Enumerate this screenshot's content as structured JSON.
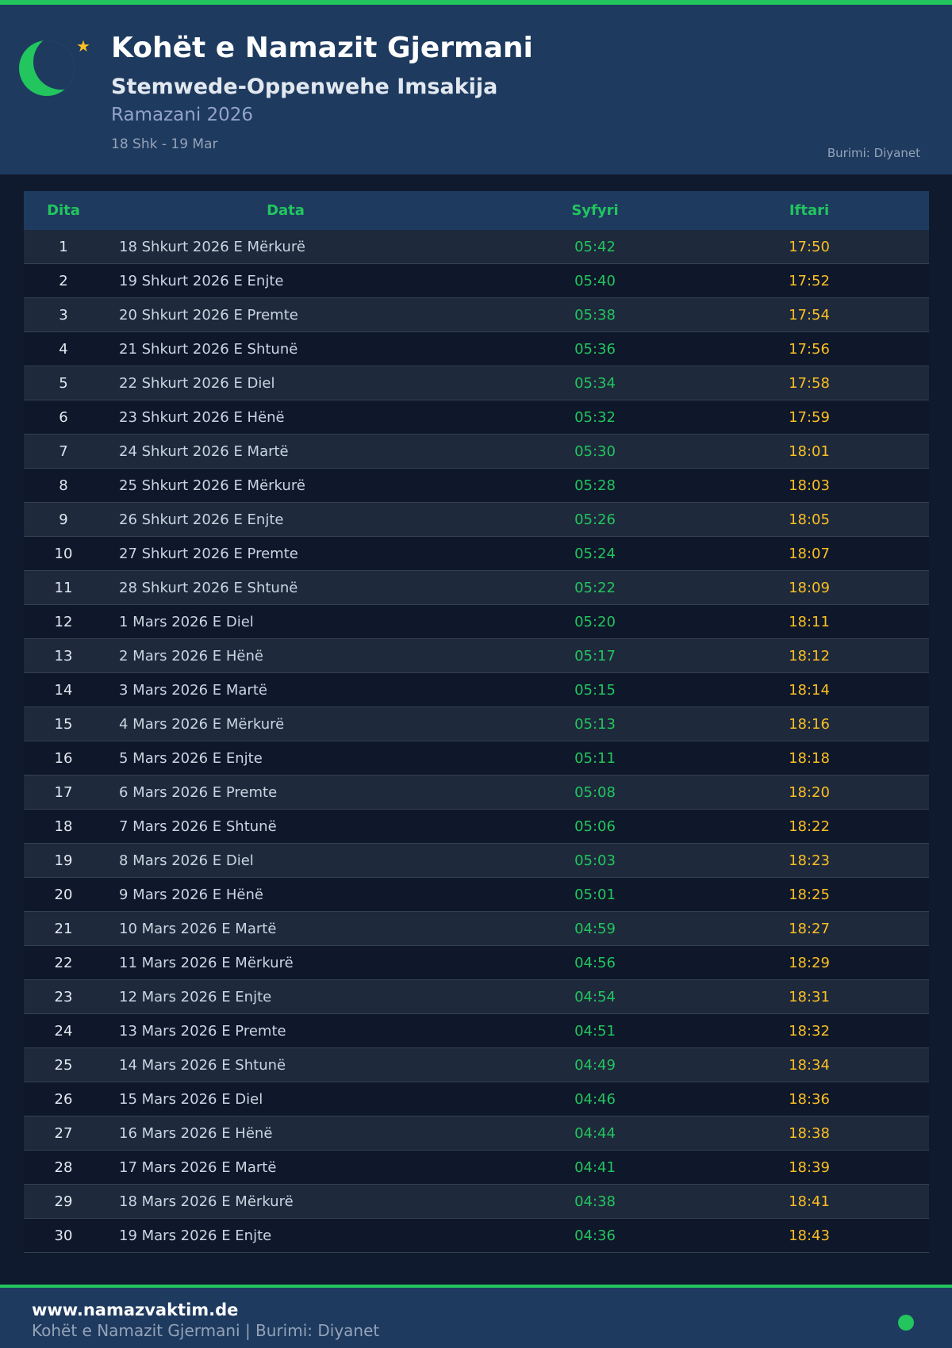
{
  "header": {
    "title": "Kohët e Namazit Gjermani",
    "subtitle": "Stemwede-Oppenwehe Imsakija",
    "ramadan": "Ramazani 2026",
    "range": "18 Shk - 19 Mar",
    "source": "Burimi: Diyanet"
  },
  "colors": {
    "accent": "#22c55e",
    "iftar": "#fbbf24",
    "header_bg": "#1e3a5f"
  },
  "table": {
    "columns": [
      "Dita",
      "Data",
      "Syfyri",
      "Iftari"
    ],
    "rows": [
      [
        "1",
        "18 Shkurt 2026 E Mërkurë",
        "05:42",
        "17:50"
      ],
      [
        "2",
        "19 Shkurt 2026 E Enjte",
        "05:40",
        "17:52"
      ],
      [
        "3",
        "20 Shkurt 2026 E Premte",
        "05:38",
        "17:54"
      ],
      [
        "4",
        "21 Shkurt 2026 E Shtunë",
        "05:36",
        "17:56"
      ],
      [
        "5",
        "22 Shkurt 2026 E Diel",
        "05:34",
        "17:58"
      ],
      [
        "6",
        "23 Shkurt 2026 E Hënë",
        "05:32",
        "17:59"
      ],
      [
        "7",
        "24 Shkurt 2026 E Martë",
        "05:30",
        "18:01"
      ],
      [
        "8",
        "25 Shkurt 2026 E Mërkurë",
        "05:28",
        "18:03"
      ],
      [
        "9",
        "26 Shkurt 2026 E Enjte",
        "05:26",
        "18:05"
      ],
      [
        "10",
        "27 Shkurt 2026 E Premte",
        "05:24",
        "18:07"
      ],
      [
        "11",
        "28 Shkurt 2026 E Shtunë",
        "05:22",
        "18:09"
      ],
      [
        "12",
        "1 Mars 2026 E Diel",
        "05:20",
        "18:11"
      ],
      [
        "13",
        "2 Mars 2026 E Hënë",
        "05:17",
        "18:12"
      ],
      [
        "14",
        "3 Mars 2026 E Martë",
        "05:15",
        "18:14"
      ],
      [
        "15",
        "4 Mars 2026 E Mërkurë",
        "05:13",
        "18:16"
      ],
      [
        "16",
        "5 Mars 2026 E Enjte",
        "05:11",
        "18:18"
      ],
      [
        "17",
        "6 Mars 2026 E Premte",
        "05:08",
        "18:20"
      ],
      [
        "18",
        "7 Mars 2026 E Shtunë",
        "05:06",
        "18:22"
      ],
      [
        "19",
        "8 Mars 2026 E Diel",
        "05:03",
        "18:23"
      ],
      [
        "20",
        "9 Mars 2026 E Hënë",
        "05:01",
        "18:25"
      ],
      [
        "21",
        "10 Mars 2026 E Martë",
        "04:59",
        "18:27"
      ],
      [
        "22",
        "11 Mars 2026 E Mërkurë",
        "04:56",
        "18:29"
      ],
      [
        "23",
        "12 Mars 2026 E Enjte",
        "04:54",
        "18:31"
      ],
      [
        "24",
        "13 Mars 2026 E Premte",
        "04:51",
        "18:32"
      ],
      [
        "25",
        "14 Mars 2026 E Shtunë",
        "04:49",
        "18:34"
      ],
      [
        "26",
        "15 Mars 2026 E Diel",
        "04:46",
        "18:36"
      ],
      [
        "27",
        "16 Mars 2026 E Hënë",
        "04:44",
        "18:38"
      ],
      [
        "28",
        "17 Mars 2026 E Martë",
        "04:41",
        "18:39"
      ],
      [
        "29",
        "18 Mars 2026 E Mërkurë",
        "04:38",
        "18:41"
      ],
      [
        "30",
        "19 Mars 2026 E Enjte",
        "04:36",
        "18:43"
      ]
    ]
  },
  "footer": {
    "site": "www.namazvaktim.de",
    "text": "Kohët e Namazit Gjermani | Burimi: Diyanet"
  }
}
